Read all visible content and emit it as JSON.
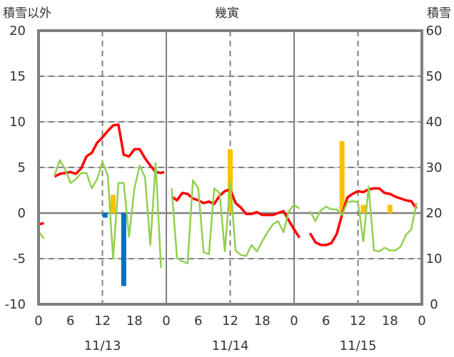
{
  "chart_data": {
    "type": "line",
    "title": "幾寅",
    "ylabel_left": "積雪以外",
    "ylabel_right": "積雪",
    "ylim_left": [
      -10,
      20
    ],
    "ylim_right": [
      0,
      60
    ],
    "yticks_left": [
      "20",
      "15",
      "10",
      "5",
      "0",
      "-5",
      "-10"
    ],
    "yticks_right": [
      "60",
      "50",
      "40",
      "30",
      "20",
      "10",
      "0"
    ],
    "xticks": [
      "0",
      "6",
      "12",
      "18",
      "0",
      "6",
      "12",
      "18",
      "0",
      "6",
      "12",
      "18",
      "0"
    ],
    "dates": [
      "11/13",
      "11/14",
      "11/15"
    ],
    "x_hours": 72,
    "grid": true,
    "colors": {
      "red": "#ff0000",
      "green": "#92d050",
      "orange": "#ffc000",
      "blue": "#0070c0",
      "purple": "#7030a0",
      "axis": "#808080"
    },
    "series": [
      {
        "name": "red-line",
        "color": "#ff0000",
        "axis": "left",
        "points": [
          [
            0,
            -1.25
          ],
          [
            1,
            -1.1
          ],
          null,
          [
            3,
            4.0
          ],
          [
            4,
            4.3
          ],
          [
            5,
            4.4
          ],
          [
            6,
            4.5
          ],
          [
            7,
            4.3
          ],
          [
            8,
            4.9
          ],
          [
            9,
            6.2
          ],
          [
            10,
            6.6
          ],
          [
            11,
            7.7
          ],
          [
            12,
            8.3
          ],
          [
            13,
            9.0
          ],
          [
            14,
            9.6
          ],
          [
            15,
            9.7
          ],
          [
            16,
            6.4
          ],
          [
            17,
            6.2
          ],
          [
            18,
            7.0
          ],
          [
            19,
            7.0
          ],
          [
            20,
            6.0
          ],
          [
            21,
            5.2
          ],
          [
            22,
            4.5
          ],
          [
            23,
            4.4
          ],
          [
            23.6,
            4.5
          ],
          null,
          [
            25,
            1.8
          ],
          [
            26,
            1.4
          ],
          [
            27,
            2.2
          ],
          [
            28,
            2.1
          ],
          [
            29,
            1.6
          ],
          [
            30,
            1.4
          ],
          [
            31,
            1.1
          ],
          [
            32,
            1.25
          ],
          [
            33,
            1.0
          ],
          [
            34,
            1.9
          ],
          [
            35,
            2.4
          ],
          [
            36,
            2.6
          ],
          [
            37,
            1.1
          ],
          [
            38,
            0.6
          ],
          [
            39,
            -0.1
          ],
          [
            40,
            -0.1
          ],
          [
            41,
            0.1
          ],
          [
            42,
            -0.2
          ],
          [
            43,
            -0.2
          ],
          [
            44,
            -0.2
          ],
          [
            45,
            0.0
          ],
          [
            46,
            0.2
          ],
          [
            47,
            -0.8
          ],
          [
            48,
            -1.8
          ],
          [
            49,
            -2.7
          ],
          null,
          [
            51,
            -2.2
          ],
          [
            52,
            -3.2
          ],
          [
            53,
            -3.5
          ],
          [
            54,
            -3.5
          ],
          [
            55,
            -3.3
          ],
          [
            56,
            -2.3
          ],
          [
            57,
            -0.2
          ],
          [
            58,
            1.7
          ],
          [
            59,
            2.1
          ],
          [
            60,
            2.4
          ],
          [
            61,
            2.3
          ],
          [
            62,
            2.6
          ],
          [
            63,
            2.7
          ],
          [
            64,
            2.7
          ],
          [
            65,
            2.2
          ],
          [
            66,
            2.1
          ],
          [
            67,
            1.8
          ],
          [
            68,
            1.6
          ],
          [
            69,
            1.4
          ],
          [
            70,
            1.3
          ],
          [
            71,
            0.5
          ]
        ]
      },
      {
        "name": "green-line",
        "color": "#92d050",
        "axis": "left",
        "points": [
          [
            0,
            -2.0
          ],
          [
            1,
            -2.8
          ],
          null,
          [
            3,
            4.1
          ],
          [
            4,
            5.8
          ],
          [
            5,
            4.8
          ],
          [
            6,
            3.3
          ],
          [
            7,
            3.7
          ],
          [
            8,
            4.4
          ],
          [
            9,
            4.4
          ],
          [
            10,
            2.7
          ],
          [
            11,
            3.7
          ],
          [
            12,
            5.6
          ],
          [
            13,
            4.1
          ],
          [
            14,
            -5.0
          ],
          [
            15,
            3.3
          ],
          [
            16,
            3.3
          ],
          [
            17,
            -2.6
          ],
          [
            18,
            2.7
          ],
          [
            19,
            5.2
          ],
          [
            20,
            3.9
          ],
          [
            21,
            -3.5
          ],
          [
            22,
            5.5
          ],
          [
            23,
            -6.0
          ],
          null,
          [
            25,
            2.7
          ],
          [
            26,
            -4.9
          ],
          [
            27,
            -5.3
          ],
          [
            28,
            -5.5
          ],
          [
            29,
            3.6
          ],
          [
            30,
            2.7
          ],
          [
            31,
            -4.3
          ],
          [
            32,
            -4.5
          ],
          [
            33,
            2.7
          ],
          [
            34,
            2.2
          ],
          [
            35,
            -4.2
          ],
          [
            36,
            3.4
          ],
          [
            37,
            -4.1
          ],
          [
            38,
            -4.6
          ],
          [
            39,
            -4.7
          ],
          [
            40,
            -3.5
          ],
          [
            41,
            -4.2
          ],
          [
            42,
            -3.1
          ],
          [
            43,
            -2.1
          ],
          [
            44,
            -1.25
          ],
          [
            45,
            -0.9
          ],
          [
            46,
            -2.1
          ],
          [
            47,
            0.2
          ],
          [
            48,
            0.9
          ],
          [
            49,
            0.5
          ],
          null,
          [
            51,
            0.2
          ],
          [
            52,
            -0.9
          ],
          [
            53,
            0.3
          ],
          [
            54,
            0.7
          ],
          [
            55,
            0.4
          ],
          [
            56,
            0.4
          ],
          [
            57,
            -0.2
          ],
          [
            58,
            1.2
          ],
          [
            59,
            1.3
          ],
          [
            60,
            1.2
          ],
          [
            61,
            -3.1
          ],
          [
            62,
            2.9
          ],
          [
            63,
            -4.1
          ],
          [
            64,
            -4.2
          ],
          [
            65,
            -3.8
          ],
          [
            66,
            -4.1
          ],
          [
            67,
            -4.1
          ],
          [
            68,
            -3.7
          ],
          [
            69,
            -2.4
          ],
          [
            70,
            -1.8
          ],
          [
            71,
            1.1
          ]
        ]
      },
      {
        "name": "purple-line",
        "color": "#7030a0",
        "axis": "right",
        "points": [
          [
            0,
            0
          ],
          [
            72,
            0
          ]
        ]
      }
    ],
    "bars": [
      {
        "hour": 12.5,
        "value": -0.5,
        "color": "#0070c0"
      },
      {
        "hour": 16,
        "value": -8.0,
        "color": "#0070c0"
      },
      {
        "hour": 14,
        "value": 2.0,
        "color": "#ffc000"
      },
      {
        "hour": 36,
        "value": 7.0,
        "color": "#ffc000"
      },
      {
        "hour": 57,
        "value": 7.9,
        "color": "#ffc000"
      },
      {
        "hour": 61,
        "value": 0.9,
        "color": "#ffc000"
      },
      {
        "hour": 66,
        "value": 0.9,
        "color": "#ffc000"
      }
    ]
  }
}
